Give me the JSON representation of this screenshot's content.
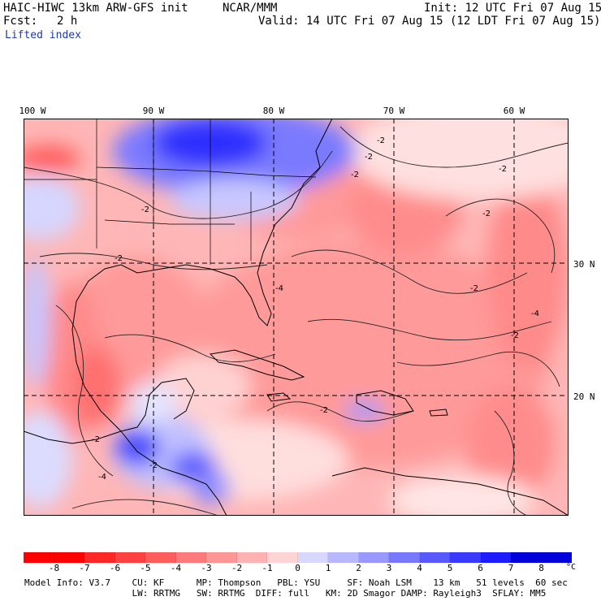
{
  "header": {
    "model_title": "HAIC-HIWC 13km ARW-GFS init",
    "org": "NCAR/MMM",
    "init_line": "Init: 12 UTC Fri 07 Aug 15",
    "fcst_label": "Fcst:",
    "fcst_value": "2 h",
    "valid_line": "Valid: 14 UTC Fri 07 Aug 15 (12 LDT Fri 07 Aug 15)",
    "field": "Lifted index"
  },
  "axes": {
    "lon_labels": [
      "100 W",
      "90 W",
      "80 W",
      "70 W",
      "60 W"
    ],
    "lat_labels": [
      "30 N",
      "20 N"
    ]
  },
  "colorbar": {
    "levels": [
      "-8",
      "-7",
      "-6",
      "-5",
      "-4",
      "-3",
      "-2",
      "-1",
      "0",
      "1",
      "2",
      "3",
      "4",
      "5",
      "6",
      "7",
      "8"
    ],
    "unit": "°C",
    "colors": [
      "#ff0000",
      "#ff2626",
      "#ff4040",
      "#ff5c5c",
      "#ff7a7a",
      "#ff9696",
      "#ffb2b2",
      "#ffd4d4",
      "#ffffff",
      "#d8d8ff",
      "#b8b8ff",
      "#9898ff",
      "#7878ff",
      "#5858ff",
      "#3a3aff",
      "#1c1cff",
      "#0000dd"
    ]
  },
  "contour_labels": [
    "-2",
    "-2",
    "-2",
    "-2",
    "-2",
    "-2",
    "-2",
    "-2",
    "-2",
    "-4",
    "-4",
    "-4",
    "-2",
    "-2",
    "-2"
  ],
  "model_info": {
    "line1": "Model Info: V3.7    CU: KF      MP: Thompson   PBL: YSU     SF: Noah LSM    13 km   51 levels  60 sec",
    "line2": "                    LW: RRTMG   SW: RRTMG  DIFF: full   KM: 2D Smagor DAMP: Rayleigh3  SFLAY: MM5"
  }
}
